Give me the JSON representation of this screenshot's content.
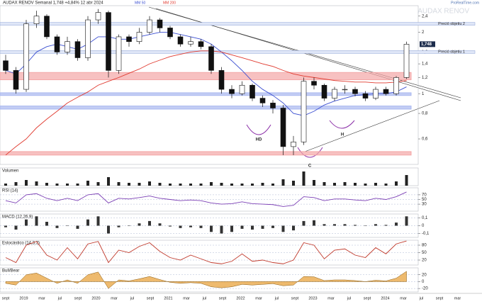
{
  "title": "AUDAX RENOV Semanal 1,748 +4,84% 12 abr 2024",
  "watermark": "AUDAX RENOV",
  "source": "ProRealTime.com",
  "x_labels": [
    "sept",
    "2019",
    "mar",
    "jul",
    "sept",
    "2020",
    "mar",
    "jul",
    "sept",
    "2021",
    "mar",
    "jul",
    "sept",
    "2022",
    "mar",
    "jul",
    "sept",
    "2023",
    "mar",
    "jul",
    "sept",
    "2024",
    "mar",
    "jul",
    "sept",
    "mar"
  ],
  "chart_data": [
    {
      "type": "candlestick",
      "log_scale": true,
      "ylim": [
        0.45,
        2.7
      ],
      "yticks": [
        {
          "value": 0.6,
          "label": "0,6"
        },
        {
          "value": 0.8,
          "label": "0,8"
        },
        1,
        {
          "value": 1.2,
          "label": "1,2"
        },
        {
          "value": 1.4,
          "label": "1,4"
        },
        {
          "value": 1.6,
          "label": "1,6"
        },
        2,
        {
          "value": 2.4,
          "label": "2,4"
        }
      ],
      "last_label": "1,748",
      "open": [
        1.45,
        1.3,
        1.05,
        2.2,
        2.4,
        1.9,
        1.6,
        1.8,
        1.5,
        2.3,
        2.5,
        1.3,
        1.9,
        1.8,
        2.0,
        2.3,
        2.1,
        1.9,
        1.75,
        1.8,
        1.7,
        1.3,
        1.05,
        1.0,
        1.1,
        0.95,
        0.9,
        0.85,
        0.55,
        0.58,
        1.15,
        1.1,
        0.95,
        1.05,
        1.05,
        1.0,
        0.95,
        1.05,
        1.0,
        1.2
      ],
      "high": [
        1.55,
        1.35,
        2.3,
        2.55,
        2.45,
        1.95,
        1.9,
        1.85,
        2.4,
        2.6,
        2.55,
        1.95,
        1.95,
        2.1,
        2.4,
        2.35,
        2.15,
        1.95,
        1.9,
        1.85,
        1.75,
        1.35,
        1.1,
        1.15,
        1.12,
        0.98,
        0.93,
        0.88,
        0.62,
        1.2,
        1.2,
        1.12,
        1.08,
        1.1,
        1.08,
        1.03,
        1.08,
        1.08,
        1.22,
        1.8
      ],
      "low": [
        1.25,
        1.0,
        1.02,
        2.1,
        1.85,
        1.55,
        1.55,
        1.45,
        1.45,
        2.2,
        1.2,
        1.25,
        1.7,
        1.75,
        1.95,
        2.0,
        1.85,
        1.7,
        1.7,
        1.65,
        1.25,
        1.0,
        0.95,
        0.98,
        0.92,
        0.86,
        0.8,
        0.5,
        0.5,
        0.56,
        1.05,
        0.92,
        0.92,
        1.0,
        0.97,
        0.92,
        0.93,
        0.98,
        0.98,
        1.18
      ],
      "close": [
        1.3,
        1.05,
        2.2,
        2.4,
        1.9,
        1.6,
        1.8,
        1.5,
        2.3,
        2.5,
        1.3,
        1.9,
        1.8,
        2.0,
        2.3,
        2.1,
        1.9,
        1.75,
        1.8,
        1.7,
        1.3,
        1.05,
        1.0,
        1.1,
        0.95,
        0.9,
        0.85,
        0.55,
        0.58,
        1.15,
        1.1,
        0.95,
        1.05,
        1.05,
        1.0,
        0.95,
        1.05,
        1.0,
        1.2,
        1.748
      ],
      "series": [
        {
          "name": "MM 50",
          "color": "#3b4fd1",
          "values": [
            1.3,
            1.25,
            1.4,
            1.6,
            1.7,
            1.75,
            1.7,
            1.65,
            1.75,
            1.9,
            1.9,
            1.85,
            1.85,
            1.9,
            1.95,
            2.0,
            2.0,
            1.95,
            1.9,
            1.85,
            1.75,
            1.6,
            1.45,
            1.3,
            1.15,
            1.05,
            0.98,
            0.9,
            0.8,
            0.78,
            0.82,
            0.88,
            0.92,
            0.95,
            0.98,
            0.99,
            1.0,
            1.0,
            1.02,
            1.08
          ]
        },
        {
          "name": "MM 200",
          "color": "#e03a2f",
          "values": [
            0.5,
            0.55,
            0.6,
            0.68,
            0.75,
            0.82,
            0.9,
            0.96,
            1.02,
            1.1,
            1.15,
            1.2,
            1.26,
            1.32,
            1.4,
            1.46,
            1.52,
            1.56,
            1.6,
            1.62,
            1.62,
            1.6,
            1.55,
            1.5,
            1.45,
            1.4,
            1.36,
            1.3,
            1.25,
            1.22,
            1.2,
            1.18,
            1.16,
            1.15,
            1.14,
            1.14,
            1.13,
            1.13,
            1.14,
            1.16
          ]
        }
      ],
      "zones": [
        {
          "from": 1.17,
          "to": 1.27,
          "color": "#f4a6a6"
        },
        {
          "from": 0.98,
          "to": 1.01,
          "color": "#a9b8f0"
        },
        {
          "from": 0.84,
          "to": 0.87,
          "color": "#a9b8f0"
        },
        {
          "from": 0.5,
          "to": 0.52,
          "color": "#f4a6a6"
        }
      ],
      "annotations": [
        {
          "text": "Preció objetiu 2",
          "value": 2.2
        },
        {
          "text": "Preció objetiu 1",
          "value": 1.6
        }
      ],
      "patterns": [
        "HD",
        "H",
        "C"
      ]
    },
    {
      "type": "bar",
      "title": "Volumen",
      "color": "#222222",
      "ylim": [
        0,
        2500
      ],
      "yticks": [],
      "values": [
        300,
        500,
        800,
        600,
        400,
        300,
        300,
        300,
        700,
        500,
        1200,
        500,
        400,
        400,
        600,
        400,
        300,
        300,
        300,
        300,
        500,
        400,
        300,
        300,
        300,
        400,
        300,
        900,
        700,
        2000,
        800,
        500,
        400,
        500,
        400,
        300,
        400,
        300,
        600,
        1500
      ]
    },
    {
      "type": "line",
      "title": "RSI (14)",
      "color": "#7b3fb5",
      "grid": true,
      "ylim": [
        0,
        100
      ],
      "yticks": [
        30,
        50,
        70
      ],
      "values": [
        45,
        35,
        70,
        75,
        55,
        45,
        55,
        45,
        70,
        75,
        35,
        55,
        52,
        58,
        65,
        55,
        50,
        45,
        48,
        45,
        35,
        30,
        32,
        40,
        32,
        30,
        28,
        20,
        25,
        62,
        58,
        45,
        52,
        52,
        48,
        45,
        55,
        50,
        62,
        82
      ]
    },
    {
      "type": "bar",
      "title": "MACD (12,26,9)",
      "color": "#333333",
      "grid": true,
      "ylim": [
        -0.15,
        0.15
      ],
      "yticks": [
        {
          "value": -0.1,
          "label": "-0,1"
        },
        0,
        {
          "value": 0.1,
          "label": "0,1"
        }
      ],
      "values": [
        -0.02,
        -0.05,
        0.08,
        0.12,
        0.05,
        -0.03,
        0.0,
        -0.04,
        0.08,
        0.12,
        -0.1,
        -0.02,
        0.0,
        0.03,
        0.06,
        0.03,
        -0.01,
        -0.03,
        -0.02,
        -0.03,
        -0.08,
        -0.1,
        -0.08,
        -0.04,
        -0.05,
        -0.04,
        -0.03,
        -0.08,
        -0.06,
        0.06,
        0.07,
        0.02,
        0.02,
        0.02,
        0.01,
        0.0,
        0.02,
        0.01,
        0.04,
        0.12
      ]
    },
    {
      "type": "line",
      "title": "Estocástico (14,3,3)",
      "color": "#c0392b",
      "grid": true,
      "ylim": [
        0,
        100
      ],
      "yticks": [
        20,
        50,
        80
      ],
      "values": [
        30,
        10,
        80,
        95,
        40,
        20,
        70,
        25,
        85,
        95,
        10,
        60,
        50,
        75,
        90,
        55,
        30,
        20,
        40,
        25,
        10,
        5,
        15,
        45,
        15,
        20,
        10,
        5,
        20,
        90,
        80,
        25,
        60,
        65,
        40,
        30,
        70,
        45,
        85,
        97
      ]
    },
    {
      "type": "area",
      "title": "Bull/Bear",
      "color": "#e8a33d",
      "grid": true,
      "ylim": [
        -30,
        40
      ],
      "yticks": [
        -20,
        0,
        20
      ],
      "values": [
        -5,
        -10,
        20,
        25,
        10,
        -5,
        5,
        -5,
        20,
        28,
        -20,
        5,
        2,
        8,
        15,
        6,
        -2,
        -5,
        -3,
        -5,
        -15,
        -18,
        -15,
        -8,
        -10,
        -8,
        -6,
        -12,
        -10,
        15,
        14,
        3,
        5,
        5,
        3,
        0,
        4,
        2,
        10,
        30
      ]
    }
  ]
}
